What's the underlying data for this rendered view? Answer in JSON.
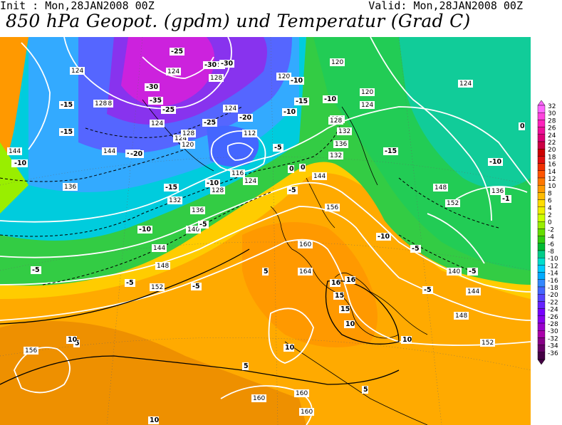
{
  "header": {
    "init": "Init : Mon,28JAN2008 00Z",
    "valid": "Valid: Mon,28JAN2008 00Z",
    "title": "850 hPa Geopot. (gpdm) und Temperatur (Grad C)"
  },
  "legend": {
    "labels": [
      "32",
      "30",
      "28",
      "26",
      "24",
      "22",
      "20",
      "18",
      "16",
      "14",
      "12",
      "10",
      "8",
      "6",
      "4",
      "2",
      "0",
      "-2",
      "-4",
      "-6",
      "-8",
      "-10",
      "-12",
      "-14",
      "-16",
      "-18",
      "-20",
      "-22",
      "-24",
      "-26",
      "-28",
      "-30",
      "-32",
      "-34",
      "-36"
    ],
    "colors": [
      "#ff66ff",
      "#ff44dd",
      "#ff22bb",
      "#ee1199",
      "#dd0077",
      "#cc0044",
      "#cc0000",
      "#e01010",
      "#f03000",
      "#ff5500",
      "#ff7700",
      "#ff9900",
      "#ffbb00",
      "#ffdd00",
      "#eeee00",
      "#ccff00",
      "#99ee00",
      "#66dd00",
      "#33cc11",
      "#00bb33",
      "#00cc88",
      "#00ddcc",
      "#00ccff",
      "#00aaff",
      "#3388ff",
      "#4466ff",
      "#5544ff",
      "#6622ff",
      "#7700ff",
      "#8800ee",
      "#9900cc",
      "#aa00aa",
      "#880088",
      "#660066",
      "#440044"
    ]
  },
  "map_labels": {
    "geopotential": [
      "124",
      "124",
      "124",
      "128",
      "128",
      "128",
      "124",
      "120",
      "120",
      "124",
      "124",
      "144",
      "144",
      "148",
      "152",
      "144",
      "148",
      "152",
      "156",
      "156",
      "160",
      "160",
      "164",
      "160",
      "160",
      "132",
      "136",
      "140",
      "128",
      "132",
      "136",
      "128",
      "124",
      "136",
      "140",
      "144",
      "148",
      "152",
      "120",
      "124",
      "112",
      "116",
      "120",
      "124",
      "128",
      "132",
      "136",
      "144"
    ],
    "temperature": [
      "-25",
      "-25",
      "-30",
      "-30",
      "-30",
      "-35",
      "-25",
      "-25",
      "-20",
      "-15",
      "-15",
      "-10",
      "-10",
      "-10",
      "-15",
      "-20",
      "-15",
      "-10",
      "-5",
      "-5",
      "0",
      "5",
      "-5",
      "-5",
      "-10",
      "-15",
      "-10",
      "-5",
      "0",
      "-5",
      "-10",
      "-10",
      "-5",
      "5",
      "5",
      "10",
      "10",
      "10",
      "15",
      "15",
      "16",
      "16",
      "10",
      "5",
      "10",
      "-5",
      "-5",
      "-1",
      "0",
      "-15",
      "-20"
    ]
  }
}
